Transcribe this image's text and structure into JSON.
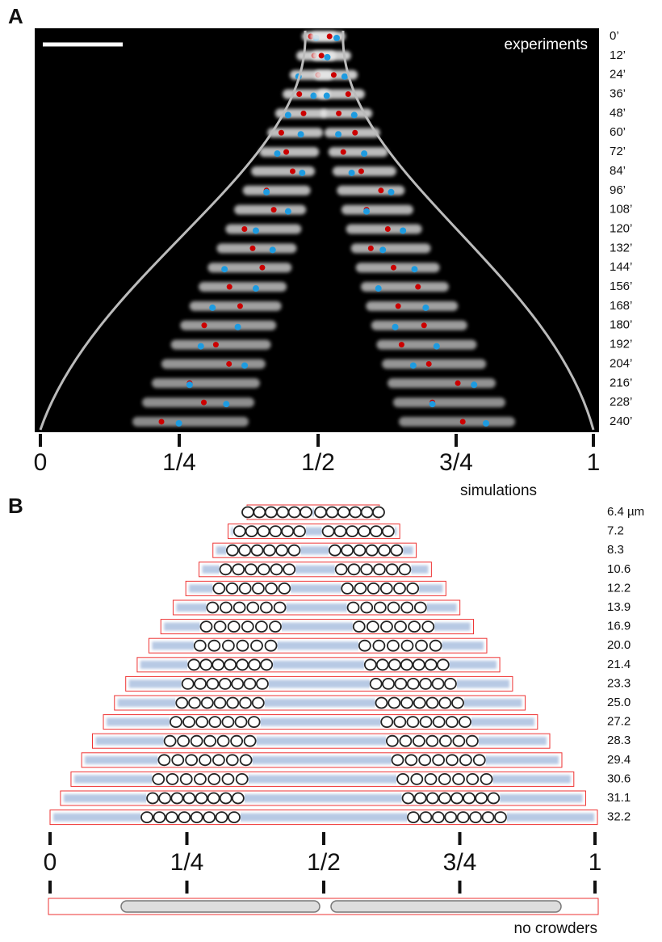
{
  "panel_a": {
    "label": "A",
    "title": "experiments",
    "times": [
      "0’",
      "12’",
      "24’",
      "36’",
      "48’",
      "60’",
      "72’",
      "84’",
      "96’",
      "108’",
      "120’",
      "132’",
      "144’",
      "156’",
      "168’",
      "180’",
      "192’",
      "204’",
      "216’",
      "228’",
      "240’"
    ],
    "axis_labels": [
      "0",
      "1/4",
      "1/2",
      "3/4",
      "1"
    ]
  },
  "panel_b": {
    "label": "B",
    "title": "simulations",
    "lengths": [
      "6.4 µm",
      "7.2",
      "8.3",
      "10.6",
      "12.2",
      "13.9",
      "16.9",
      "20.0",
      "21.4",
      "23.3",
      "25.0",
      "27.2",
      "28.3",
      "29.4",
      "30.6",
      "31.1",
      "32.2"
    ],
    "axis_labels": [
      "0",
      "1/4",
      "1/2",
      "3/4",
      "1"
    ],
    "footer": "no crowders"
  }
}
